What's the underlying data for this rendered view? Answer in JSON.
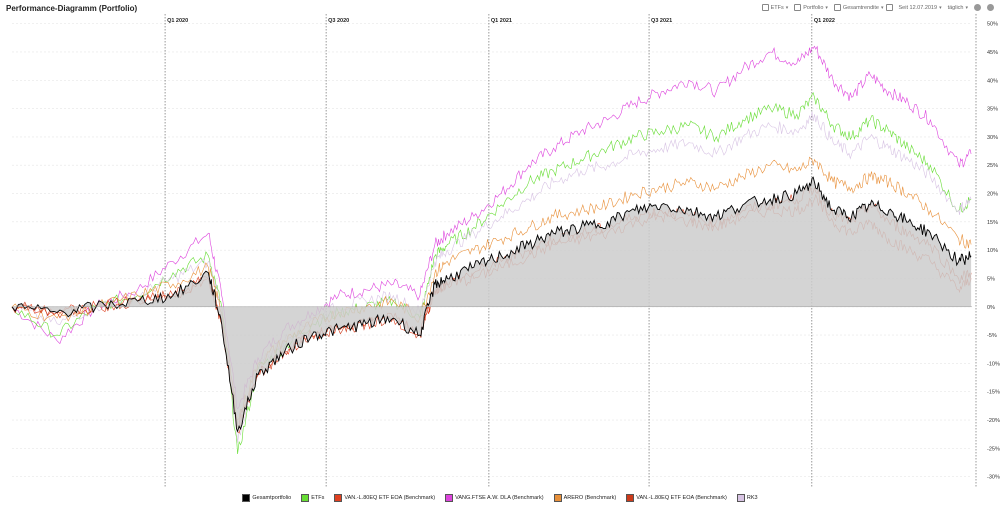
{
  "title": "Performance-Diagramm (Portfolio)",
  "toolbar": {
    "etfs": "ETFs",
    "portfolio": "Portfolio",
    "return": "Gesamtrendite",
    "since": "Seit 12.07.2019",
    "interval": "täglich"
  },
  "chart_data": {
    "type": "line",
    "x_range": [
      "2019-07-12",
      "2022-07-01"
    ],
    "quarter_labels": [
      {
        "label": "Q1 2020",
        "date": "2020-01-01"
      },
      {
        "label": "Q3 2020",
        "date": "2020-07-01"
      },
      {
        "label": "Q1 2021",
        "date": "2021-01-01"
      },
      {
        "label": "Q3 2021",
        "date": "2021-07-01"
      },
      {
        "label": "Q1 2022",
        "date": "2022-01-01"
      }
    ],
    "ylim": [
      -32,
      51
    ],
    "yticks": [
      50,
      45,
      40,
      35,
      30,
      25,
      20,
      15,
      10,
      5,
      0,
      -5,
      -10,
      -15,
      -20,
      -25,
      -30
    ],
    "ytick_labels": [
      "50%",
      "45%",
      "40%",
      "35%",
      "30%",
      "25%",
      "20%",
      "15%",
      "10%",
      "5%",
      "0%",
      "-5%",
      "-10%",
      "-15%",
      "-20%",
      "-25%",
      "-30%"
    ],
    "dates": [
      "2019-07-12",
      "2019-09-01",
      "2019-10-15",
      "2019-12-01",
      "2020-01-10",
      "2020-02-19",
      "2020-03-05",
      "2020-03-23",
      "2020-04-15",
      "2020-05-15",
      "2020-06-15",
      "2020-07-15",
      "2020-08-15",
      "2020-09-15",
      "2020-10-15",
      "2020-11-01",
      "2020-11-15",
      "2020-12-15",
      "2021-01-15",
      "2021-02-15",
      "2021-03-15",
      "2021-04-15",
      "2021-05-15",
      "2021-06-15",
      "2021-07-15",
      "2021-08-15",
      "2021-09-15",
      "2021-10-15",
      "2021-11-15",
      "2021-12-15",
      "2022-01-04",
      "2022-01-25",
      "2022-02-15",
      "2022-03-08",
      "2022-03-29",
      "2022-04-20",
      "2022-05-15",
      "2022-06-16",
      "2022-06-30"
    ],
    "series": [
      {
        "name": "Gesamtportfolio",
        "color": "#000000",
        "fill": "#cccccc",
        "values": [
          0,
          -1,
          0,
          1,
          2,
          6,
          -3,
          -22,
          -12,
          -8,
          -5,
          -4,
          -3,
          -2,
          -5,
          4,
          5,
          7,
          9,
          11,
          13,
          14,
          15,
          17,
          18,
          17,
          16,
          18,
          19,
          20,
          22,
          17,
          16,
          18,
          17,
          15,
          13,
          8,
          9
        ]
      },
      {
        "name": "ETFs",
        "color": "#66dd33",
        "values": [
          0,
          -5,
          0,
          2,
          6,
          9,
          0,
          -26,
          -11,
          -7,
          -3,
          -1,
          0,
          1,
          -2,
          9,
          11,
          14,
          18,
          22,
          24,
          26,
          28,
          30,
          31,
          32,
          30,
          33,
          35,
          34,
          37,
          32,
          30,
          33,
          31,
          28,
          25,
          17,
          19
        ]
      },
      {
        "name": "VAN.-L.80EQ ETF EOA (Benchmark)",
        "color": "#e04020",
        "values": [
          0,
          -1,
          0,
          1,
          2,
          5,
          -3,
          -22,
          -12,
          -8,
          -5,
          -4,
          -3,
          -2,
          -5,
          3,
          4,
          5,
          7,
          9,
          11,
          12,
          13,
          15,
          16,
          15,
          14,
          16,
          17,
          17,
          19,
          15,
          13,
          15,
          12,
          10,
          8,
          3,
          5
        ]
      },
      {
        "name": "VANG.FTSE A.W. DLA (Benchmark)",
        "color": "#dd44dd",
        "values": [
          0,
          -6,
          0,
          3,
          8,
          13,
          2,
          -18,
          -9,
          -4,
          -1,
          2,
          3,
          4,
          2,
          11,
          13,
          16,
          20,
          25,
          28,
          31,
          33,
          36,
          38,
          40,
          38,
          42,
          45,
          43,
          46,
          40,
          37,
          41,
          38,
          36,
          33,
          25,
          27
        ]
      },
      {
        "name": "ARERO (Benchmark)",
        "color": "#e8903a",
        "values": [
          0,
          -2,
          0,
          2,
          4,
          7,
          -1,
          -20,
          -10,
          -6,
          -3,
          -1,
          0,
          1,
          -2,
          6,
          8,
          10,
          12,
          14,
          16,
          17,
          18,
          20,
          21,
          22,
          21,
          23,
          25,
          24,
          26,
          22,
          21,
          23,
          22,
          20,
          17,
          12,
          11
        ]
      },
      {
        "name": "VAN.-L.80EQ ETF EOA (Benchmark)",
        "color": "#cc3a1a",
        "values": [
          0,
          -1,
          0,
          1,
          2,
          5,
          -3,
          -21,
          -12,
          -8,
          -5,
          -4,
          -3,
          -2,
          -5,
          3,
          4,
          6,
          8,
          10,
          12,
          13,
          14,
          16,
          17,
          16,
          15,
          17,
          18,
          19,
          21,
          16,
          15,
          18,
          15,
          13,
          11,
          5,
          6
        ]
      },
      {
        "name": "RK3",
        "color": "#d8c4e4",
        "values": [
          0,
          -3,
          0,
          2,
          5,
          8,
          0,
          -24,
          -10,
          -6,
          -2,
          0,
          1,
          2,
          -1,
          8,
          10,
          13,
          16,
          19,
          22,
          24,
          25,
          27,
          28,
          29,
          27,
          30,
          32,
          31,
          34,
          29,
          27,
          30,
          28,
          26,
          23,
          17,
          19
        ]
      }
    ]
  }
}
